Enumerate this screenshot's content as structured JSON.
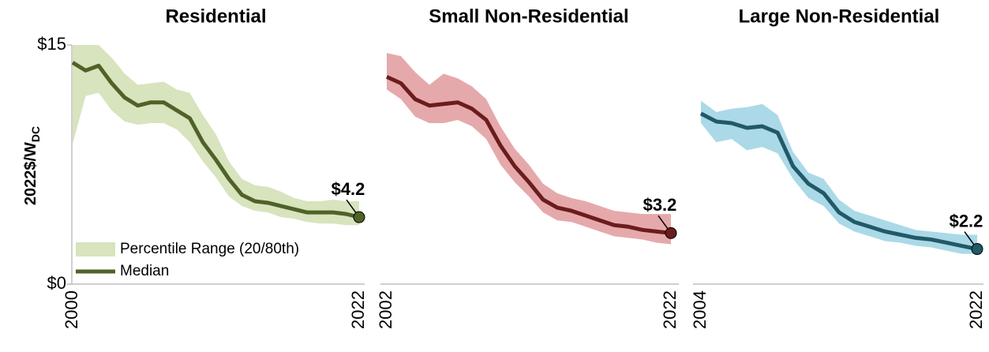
{
  "chart_data": [
    {
      "type": "line",
      "title": "Residential",
      "y_label": "2022$/W",
      "y_label_sub": "DC",
      "x": [
        2000,
        2001,
        2002,
        2003,
        2004,
        2005,
        2006,
        2007,
        2008,
        2009,
        2010,
        2011,
        2012,
        2013,
        2014,
        2015,
        2016,
        2017,
        2018,
        2019,
        2020,
        2021,
        2022
      ],
      "xlim": [
        2000,
        2022
      ],
      "xticks": [
        2000,
        2022
      ],
      "ylim": [
        0,
        15
      ],
      "yticks": [
        {
          "value": 0,
          "label": "$0"
        },
        {
          "value": 15,
          "label": "$15"
        }
      ],
      "legend": "lower left",
      "series": [
        {
          "name": "Percentile Range (20/80th)",
          "color": "#d7e4bd",
          "low": [
            8.8,
            11.8,
            12.0,
            10.9,
            10.2,
            10.0,
            10.1,
            10.1,
            9.7,
            8.9,
            7.7,
            6.7,
            5.5,
            4.9,
            4.6,
            4.5,
            4.2,
            4.1,
            3.9,
            3.8,
            3.8,
            3.7,
            3.7
          ],
          "high": [
            15,
            15,
            15,
            14.2,
            13.2,
            12.5,
            12.6,
            12.7,
            12.2,
            12.0,
            10.6,
            9.4,
            7.7,
            6.6,
            6.2,
            6.1,
            5.8,
            5.4,
            5.2,
            5.2,
            5.3,
            5.2,
            5.2
          ]
        },
        {
          "name": "Median",
          "color": "#4f6228",
          "values": [
            13.9,
            13.4,
            13.7,
            12.6,
            11.7,
            11.2,
            11.4,
            11.4,
            10.9,
            10.4,
            8.9,
            7.8,
            6.6,
            5.6,
            5.2,
            5.1,
            4.9,
            4.7,
            4.5,
            4.5,
            4.5,
            4.4,
            4.2
          ],
          "value_labels": [
            null,
            null,
            null,
            null,
            null,
            null,
            null,
            null,
            null,
            null,
            null,
            null,
            null,
            null,
            null,
            null,
            null,
            null,
            null,
            null,
            null,
            null,
            "$4.2"
          ]
        }
      ]
    },
    {
      "type": "line",
      "title": "Small Non-Residential",
      "x": [
        2002,
        2003,
        2004,
        2005,
        2006,
        2007,
        2008,
        2009,
        2010,
        2011,
        2012,
        2013,
        2014,
        2015,
        2016,
        2017,
        2018,
        2019,
        2020,
        2021,
        2022
      ],
      "xlim": [
        2002,
        2022
      ],
      "xticks": [
        2002,
        2022
      ],
      "ylim": [
        0,
        15
      ],
      "series": [
        {
          "color": "#e6a9ab",
          "low": [
            12.2,
            11.6,
            10.5,
            10.1,
            10.1,
            10.3,
            9.9,
            9.1,
            7.5,
            6.4,
            5.5,
            4.5,
            4.0,
            3.9,
            3.6,
            3.3,
            3.0,
            2.9,
            2.8,
            2.6,
            2.5
          ],
          "high": [
            14.5,
            14.3,
            13.3,
            12.5,
            13.2,
            12.9,
            12.4,
            11.6,
            9.9,
            8.5,
            7.5,
            6.3,
            5.7,
            5.4,
            5.2,
            4.9,
            4.6,
            4.5,
            4.4,
            4.4,
            4.4
          ]
        },
        {
          "color": "#6b1c1c",
          "values": [
            13.0,
            12.6,
            11.6,
            11.2,
            11.3,
            11.4,
            11.0,
            10.3,
            8.7,
            7.4,
            6.4,
            5.3,
            4.8,
            4.6,
            4.3,
            4.0,
            3.7,
            3.6,
            3.4,
            3.3,
            3.2
          ],
          "value_labels": [
            null,
            null,
            null,
            null,
            null,
            null,
            null,
            null,
            null,
            null,
            null,
            null,
            null,
            null,
            null,
            null,
            null,
            null,
            null,
            null,
            "$3.2"
          ]
        }
      ]
    },
    {
      "type": "line",
      "title": "Large Non-Residential",
      "x": [
        2004,
        2005,
        2006,
        2007,
        2008,
        2009,
        2010,
        2011,
        2012,
        2013,
        2014,
        2015,
        2016,
        2017,
        2018,
        2019,
        2020,
        2021,
        2022
      ],
      "xlim": [
        2004,
        2022
      ],
      "xticks": [
        2004,
        2022
      ],
      "ylim": [
        0,
        15
      ],
      "series": [
        {
          "color": "#abd9e7",
          "low": [
            10.1,
            8.9,
            9.1,
            8.4,
            8.6,
            8.2,
            6.6,
            5.4,
            4.9,
            3.8,
            3.3,
            3.0,
            2.7,
            2.6,
            2.4,
            2.3,
            2.1,
            1.9,
            1.9
          ],
          "high": [
            11.5,
            10.8,
            11.0,
            11.1,
            11.3,
            10.6,
            8.3,
            7.0,
            6.6,
            5.3,
            4.6,
            4.3,
            4.0,
            3.7,
            3.4,
            3.3,
            3.2,
            3.1,
            3.1
          ]
        },
        {
          "color": "#215968",
          "values": [
            10.7,
            10.2,
            10.1,
            9.8,
            9.9,
            9.5,
            7.4,
            6.3,
            5.7,
            4.5,
            3.9,
            3.6,
            3.3,
            3.1,
            2.9,
            2.8,
            2.6,
            2.4,
            2.2
          ],
          "value_labels": [
            null,
            null,
            null,
            null,
            null,
            null,
            null,
            null,
            null,
            null,
            null,
            null,
            null,
            null,
            null,
            null,
            null,
            null,
            "$2.2"
          ]
        }
      ]
    }
  ]
}
